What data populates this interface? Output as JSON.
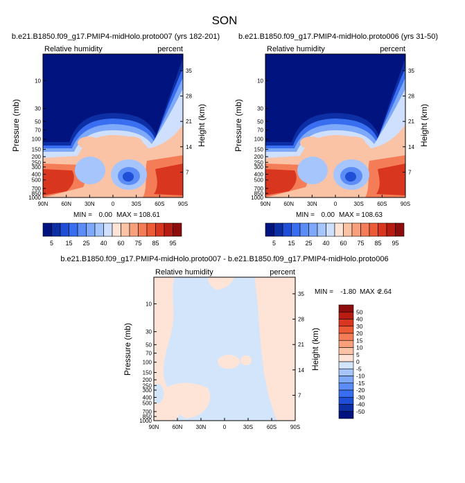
{
  "page": {
    "title": "SON"
  },
  "colors": {
    "top_scale": [
      "#00137f",
      "#0d2fa6",
      "#1f4fd6",
      "#3a6ef0",
      "#5c8cf6",
      "#7ea9fa",
      "#a6c5fc",
      "#cfe0fe",
      "#fde4d6",
      "#fbc3a6",
      "#f8a07c",
      "#f47d58",
      "#ed5a36",
      "#d9361f",
      "#b61c12",
      "#8c0d0b"
    ],
    "diff_scale": [
      "#00137f",
      "#0d2fa6",
      "#1f4fd6",
      "#3a6ef0",
      "#5c8cf6",
      "#7ea9fa",
      "#a6c5fc",
      "#d3e5fb",
      "#fde4d6",
      "#fbc3a6",
      "#f8a07c",
      "#f47d58",
      "#ed5a36",
      "#d9361f",
      "#b61c12",
      "#8c0d0b"
    ]
  },
  "chart_data": [
    {
      "type": "heatmap",
      "title": "b.e21.B1850.f09_g17.PMIP4-midHolo.proto007 (yrs 182-201)",
      "left_label": "Relative humidity",
      "right_label": "percent",
      "xlabel": "",
      "ylabel": "Pressure (mb)",
      "y2label": "Height (km)",
      "x_ticks": [
        "90N",
        "60N",
        "30N",
        "0",
        "30S",
        "60S",
        "90S"
      ],
      "y_ticks": [
        "10",
        "30",
        "50",
        "70",
        "100",
        "150",
        "200",
        "250",
        "300",
        "400",
        "500",
        "700",
        "850",
        "1000"
      ],
      "y2_ticks": [
        "35",
        "28",
        "21",
        "14",
        "7"
      ],
      "stats": {
        "min_label": "MIN =",
        "min": "0.00",
        "max_label": "MAX =",
        "max": "108.61"
      },
      "colorbar_labels": [
        "5",
        "15",
        "25",
        "40",
        "60",
        "75",
        "85",
        "95"
      ]
    },
    {
      "type": "heatmap",
      "title": "b.e21.B1850.f09_g17.PMIP4-midHolo.proto006 (yrs 31-50)",
      "left_label": "Relative humidity",
      "right_label": "percent",
      "xlabel": "",
      "ylabel": "Pressure (mb)",
      "y2label": "Height (km)",
      "x_ticks": [
        "90N",
        "60N",
        "30N",
        "0",
        "30S",
        "60S",
        "90S"
      ],
      "y_ticks": [
        "10",
        "30",
        "50",
        "70",
        "100",
        "150",
        "200",
        "250",
        "300",
        "400",
        "500",
        "700",
        "850",
        "1000"
      ],
      "y2_ticks": [
        "35",
        "28",
        "21",
        "14",
        "7"
      ],
      "stats": {
        "min_label": "MIN =",
        "min": "0.00",
        "max_label": "MAX =",
        "max": "108.63"
      },
      "colorbar_labels": [
        "5",
        "15",
        "25",
        "40",
        "60",
        "75",
        "85",
        "95"
      ]
    },
    {
      "type": "heatmap",
      "title": "b.e21.B1850.f09_g17.PMIP4-midHolo.proto007 - b.e21.B1850.f09_g17.PMIP4-midHolo.proto006",
      "left_label": "Relative humidity",
      "right_label": "percent",
      "xlabel": "",
      "ylabel": "Pressure (mb)",
      "y2label": "Height (km)",
      "x_ticks": [
        "90N",
        "60N",
        "30N",
        "0",
        "30S",
        "60S",
        "90S"
      ],
      "y_ticks": [
        "10",
        "30",
        "50",
        "70",
        "100",
        "150",
        "200",
        "250",
        "300",
        "400",
        "500",
        "700",
        "850",
        "1000"
      ],
      "y2_ticks": [
        "35",
        "28",
        "21",
        "14",
        "7"
      ],
      "stats": {
        "min_label": "MIN =",
        "min": "-1.80",
        "max_label": "MAX =",
        "max": "2.64"
      },
      "colorbar_labels": [
        "50",
        "40",
        "30",
        "20",
        "15",
        "10",
        "5",
        "0",
        "-5",
        "-10",
        "-15",
        "-20",
        "-30",
        "-40",
        "-50"
      ]
    }
  ]
}
